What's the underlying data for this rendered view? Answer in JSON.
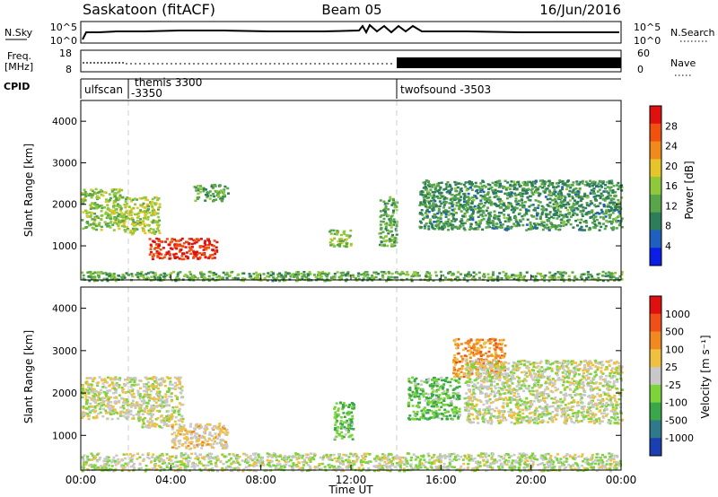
{
  "header": {
    "title": "Saskatoon (fitACF)",
    "beam": "Beam 05",
    "date": "16/Jun/2016"
  },
  "nsky_panel": {
    "left_label": "N.Sky",
    "left_ticks": [
      "10^5",
      "10^0"
    ],
    "right_label": "N.Search",
    "right_ticks": [
      "10^5",
      "10^0"
    ]
  },
  "freq_panel": {
    "left_label_1": "Freq.",
    "left_label_2": "[MHz]",
    "left_ticks": [
      "18",
      "8"
    ],
    "right_label": "Nave",
    "right_ticks": [
      "60",
      "0"
    ]
  },
  "cpid": {
    "label": "CPID",
    "segments": [
      {
        "name": "ulfscan",
        "hour_start": 0.0
      },
      {
        "name": "themis 3300",
        "sub": "-3350",
        "hour_start": 1.85
      },
      {
        "name": "twofsound -3503",
        "hour_start": 14.05
      }
    ]
  },
  "power_panel": {
    "ylabel": "Slant Range [km]",
    "yticks": [
      "4000",
      "3000",
      "2000",
      "1000"
    ],
    "colorbar_label": "Power [dB]",
    "colorbar_ticks": [
      "28",
      "24",
      "20",
      "16",
      "12",
      "8",
      "4"
    ],
    "colors": [
      "#0a1ee6",
      "#1f5fc0",
      "#2e7d5a",
      "#58a64a",
      "#8fc83a",
      "#e6c52a",
      "#f08a1a",
      "#f05010",
      "#e01010"
    ]
  },
  "velocity_panel": {
    "ylabel": "Slant Range [km]",
    "yticks": [
      "4000",
      "3000",
      "2000",
      "1000"
    ],
    "colorbar_label": "Velocity [m s⁻¹]",
    "colorbar_ticks": [
      "1000",
      "500",
      "100",
      "25",
      "-25",
      "-100",
      "-500",
      "-1000"
    ],
    "colors": [
      "#1a3fb0",
      "#2f7a8a",
      "#3aa84a",
      "#7ad43a",
      "#c8c8c8",
      "#f0c040",
      "#f08a20",
      "#f05018",
      "#e01010"
    ]
  },
  "x_axis": {
    "ticks": [
      "00:00",
      "04:00",
      "08:00",
      "12:00",
      "16:00",
      "20:00",
      "00:00"
    ],
    "label": "Time UT"
  },
  "chart_data": {
    "type": "heatmap",
    "title": "Saskatoon (fitACF)",
    "xlabel": "Time UT",
    "ylabel": "Slant Range [km]",
    "xlim": [
      0,
      24
    ],
    "ylim": [
      180,
      4500
    ],
    "panels": [
      {
        "name": "Power",
        "unit": "dB",
        "range": [
          0,
          30
        ],
        "regions": [
          {
            "t": [
              0.0,
              1.8
            ],
            "r": [
              1400,
              2400
            ],
            "v": 14
          },
          {
            "t": [
              1.8,
              3.5
            ],
            "r": [
              1300,
              2200
            ],
            "v": 16
          },
          {
            "t": [
              3.0,
              6.0
            ],
            "r": [
              700,
              1200
            ],
            "v": 27
          },
          {
            "t": [
              5.0,
              6.5
            ],
            "r": [
              2100,
              2500
            ],
            "v": 12
          },
          {
            "t": [
              11.0,
              12.0
            ],
            "r": [
              1000,
              1400
            ],
            "v": 14
          },
          {
            "t": [
              13.2,
              14.0
            ],
            "r": [
              1000,
              2200
            ],
            "v": 12
          },
          {
            "t": [
              15.0,
              24.0
            ],
            "r": [
              1400,
              2600
            ],
            "v": 10
          },
          {
            "t": [
              0.0,
              24.0
            ],
            "r": [
              180,
              400
            ],
            "v": 12
          }
        ]
      },
      {
        "name": "Velocity",
        "unit": "m s-1",
        "range": [
          -1000,
          1000
        ],
        "regions": [
          {
            "t": [
              0.0,
              2.5
            ],
            "r": [
              1400,
              2400
            ],
            "v": 0
          },
          {
            "t": [
              2.5,
              4.5
            ],
            "r": [
              1200,
              2400
            ],
            "v": 0
          },
          {
            "t": [
              4.0,
              6.5
            ],
            "r": [
              700,
              1300
            ],
            "v": 150
          },
          {
            "t": [
              11.2,
              12.1
            ],
            "r": [
              900,
              1800
            ],
            "v": -300
          },
          {
            "t": [
              14.5,
              16.8
            ],
            "r": [
              1400,
              2400
            ],
            "v": -300
          },
          {
            "t": [
              16.5,
              18.8
            ],
            "r": [
              2400,
              3300
            ],
            "v": 400
          },
          {
            "t": [
              17.0,
              24.0
            ],
            "r": [
              1300,
              2800
            ],
            "v": 0
          },
          {
            "t": [
              0.0,
              24.0
            ],
            "r": [
              180,
              600
            ],
            "v": -50
          }
        ]
      }
    ]
  }
}
